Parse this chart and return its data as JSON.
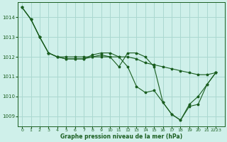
{
  "title": "Graphe pression niveau de la mer (hPa)",
  "bg_color": "#cff0ea",
  "line_color": "#1a5e20",
  "grid_color": "#aad8d0",
  "xlim": [
    -0.5,
    23
  ],
  "ylim": [
    1008.5,
    1014.75
  ],
  "yticks": [
    1009,
    1010,
    1011,
    1012,
    1013,
    1014
  ],
  "xtick_labels": [
    "0",
    "1",
    "2",
    "3",
    "4",
    "5",
    "6",
    "7",
    "8",
    "9",
    "10",
    "11",
    "12",
    "13",
    "14",
    "15",
    "16",
    "17",
    "18",
    "19",
    "20",
    "21",
    "2223"
  ],
  "xtick_pos": [
    0,
    1,
    2,
    3,
    4,
    5,
    6,
    7,
    8,
    9,
    10,
    11,
    12,
    13,
    14,
    15,
    16,
    17,
    18,
    19,
    20,
    21,
    22
  ],
  "series": [
    [
      1014.5,
      1013.9,
      1013.0,
      1012.2,
      1012.0,
      1011.9,
      1011.9,
      1011.9,
      1012.0,
      1012.1,
      1012.0,
      1011.5,
      1012.2,
      1012.2,
      1012.0,
      1011.5,
      1009.7,
      1009.1,
      1008.8,
      1009.6,
      1010.0,
      1010.6,
      1011.2
    ],
    [
      1014.5,
      1013.9,
      1013.0,
      1012.2,
      1012.0,
      1011.9,
      1011.9,
      1011.9,
      1012.1,
      1012.2,
      1012.2,
      1012.0,
      1011.5,
      1010.5,
      1010.2,
      1010.3,
      1009.7,
      1009.1,
      1008.8,
      1009.5,
      1009.6,
      1010.6,
      1011.2
    ],
    [
      1014.5,
      1013.9,
      1013.0,
      1012.2,
      1012.0,
      1012.0,
      1012.0,
      1012.0,
      1012.0,
      1012.0,
      1012.0,
      1012.0,
      1012.0,
      1011.9,
      1011.7,
      1011.6,
      1011.5,
      1011.4,
      1011.3,
      1011.2,
      1011.1,
      1011.1,
      1011.2
    ]
  ]
}
